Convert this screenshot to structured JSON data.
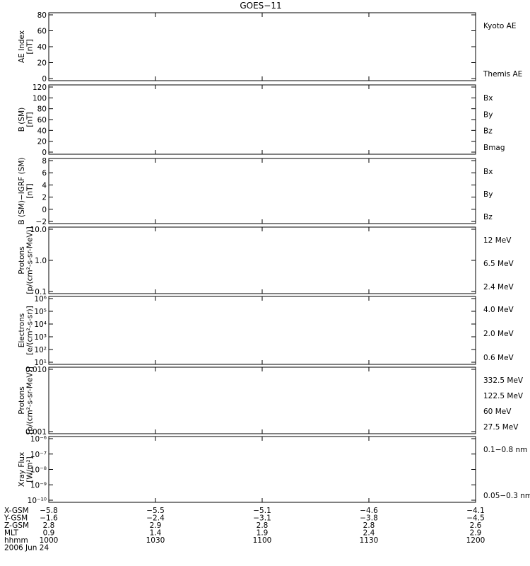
{
  "title": "GOES−11",
  "colors": {
    "blue": "#1a1aff",
    "black": "#000000",
    "red": "#d00000",
    "green": "#22cc22",
    "yellow": "#ffd700",
    "cyan": "#1aa8e0",
    "darkred": "#a00000"
  },
  "chart_data": [
    {
      "type": "line",
      "ylabel": "AE Index\n[nT]",
      "ylim": [
        0,
        80
      ],
      "ticks": [
        "0",
        "20",
        "40",
        "60",
        "80"
      ],
      "legend": [
        {
          "label": "Kyoto AE",
          "color": "blue"
        },
        {
          "label": "Themis AE",
          "color": "black"
        }
      ]
    },
    {
      "type": "line",
      "ylabel": "B (SM)\n[nT]",
      "ylim": [
        0,
        120
      ],
      "ticks": [
        "0",
        "20",
        "40",
        "60",
        "80",
        "100",
        "120"
      ],
      "legend": [
        {
          "label": "Bx",
          "color": "blue"
        },
        {
          "label": "By",
          "color": "green"
        },
        {
          "label": "Bz",
          "color": "red"
        },
        {
          "label": "Bmag",
          "color": "black"
        }
      ]
    },
    {
      "type": "line",
      "ylabel": "B (SM)−IGRF (SM)\n[nT]",
      "ylim": [
        -2,
        8
      ],
      "ticks": [
        "−2",
        "0",
        "2",
        "4",
        "6",
        "8"
      ],
      "legend": [
        {
          "label": "Bx",
          "color": "blue"
        },
        {
          "label": "By",
          "color": "green"
        },
        {
          "label": "Bz",
          "color": "red"
        }
      ]
    },
    {
      "type": "line",
      "scale": "log",
      "ylabel": "Protons\n[p/(cm²-s-sr-MeV)]",
      "ylim": [
        0.1,
        100
      ],
      "ticks": [
        "0.1",
        "1.0",
        "10.0"
      ],
      "legend": [
        {
          "label": "12 MeV",
          "color": "darkred"
        },
        {
          "label": "6.5 MeV",
          "color": "green"
        },
        {
          "label": "2.4 MeV",
          "color": "black"
        }
      ]
    },
    {
      "type": "line",
      "scale": "log",
      "ylabel": "Electrons\n[e/(cm²-s-sr)]",
      "ylim": [
        10,
        1000000
      ],
      "ticks": [
        "10¹",
        "10²",
        "10³",
        "10⁴",
        "10⁵",
        "10⁶"
      ],
      "legend": [
        {
          "label": "4.0 MeV",
          "color": "darkred"
        },
        {
          "label": "2.0 MeV",
          "color": "green"
        },
        {
          "label": "0.6 MeV",
          "color": "black"
        }
      ]
    },
    {
      "type": "line",
      "scale": "log",
      "ylabel": "Protons\n[p/(cm²-s-sr-MeV)]",
      "ylim": [
        0.001,
        0.1
      ],
      "ticks": [
        "0.001",
        "0.010"
      ],
      "legend": [
        {
          "label": "332.5 MeV",
          "color": "darkred"
        },
        {
          "label": "122.5 MeV",
          "color": "yellow"
        },
        {
          "label": "60 MeV",
          "color": "cyan"
        },
        {
          "label": "27.5 MeV",
          "color": "black"
        }
      ]
    },
    {
      "type": "line",
      "scale": "log",
      "ylabel": "Xray Flux\n[W/m²]",
      "ylim": [
        1e-10,
        1e-06
      ],
      "ticks": [
        "10⁻¹⁰",
        "10⁻⁹",
        "10⁻⁸",
        "10⁻⁷",
        "10⁻⁶"
      ],
      "legend": [
        {
          "label": "0.1−0.8 nm",
          "color": "red"
        },
        {
          "label": "0.05−0.3 nm",
          "color": "blue"
        }
      ]
    }
  ],
  "x_axis": {
    "time_range": [
      "1000",
      "1200"
    ],
    "rows": [
      {
        "label": "X-GSM",
        "values": [
          "−5.8",
          "−5.5",
          "−5.1",
          "−4.6",
          "−4.1"
        ]
      },
      {
        "label": "Y-GSM",
        "values": [
          "−1.6",
          "−2.4",
          "−3.1",
          "−3.8",
          "−4.5"
        ]
      },
      {
        "label": "Z-GSM",
        "values": [
          "2.8",
          "2.9",
          "2.8",
          "2.8",
          "2.6"
        ]
      },
      {
        "label": "MLT",
        "values": [
          "0.9",
          "1.4",
          "1.9",
          "2.4",
          "2.9"
        ]
      },
      {
        "label": "hhmm",
        "values": [
          "1000",
          "1030",
          "1100",
          "1130",
          "1200"
        ]
      }
    ],
    "date": "2006 Jun 24"
  }
}
